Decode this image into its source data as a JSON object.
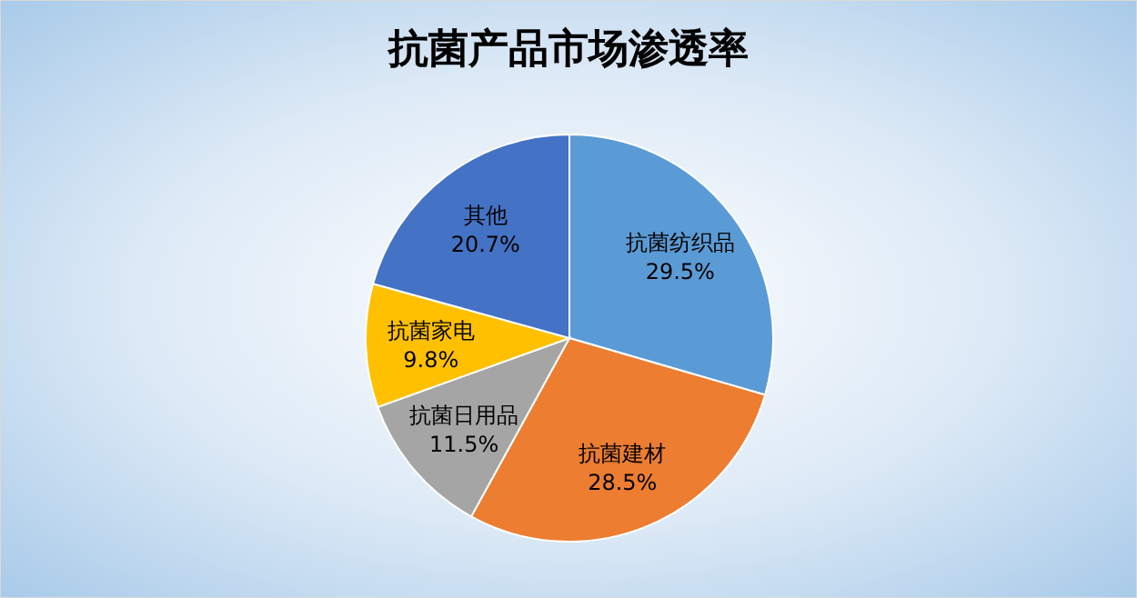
{
  "chart_data": {
    "type": "pie",
    "title": "抗菌产品市场渗透率",
    "categories": [
      "抗菌纺织品",
      "抗菌建材",
      "抗菌日用品",
      "抗菌家电",
      "其他"
    ],
    "values": [
      29.5,
      28.5,
      11.5,
      9.8,
      20.7
    ],
    "colors": [
      "#5b9bd5",
      "#ed7d31",
      "#a5a5a5",
      "#ffc000",
      "#4472c4"
    ],
    "value_labels": [
      "29.5%",
      "28.5%",
      "11.5%",
      "9.8%",
      "20.7%"
    ]
  }
}
